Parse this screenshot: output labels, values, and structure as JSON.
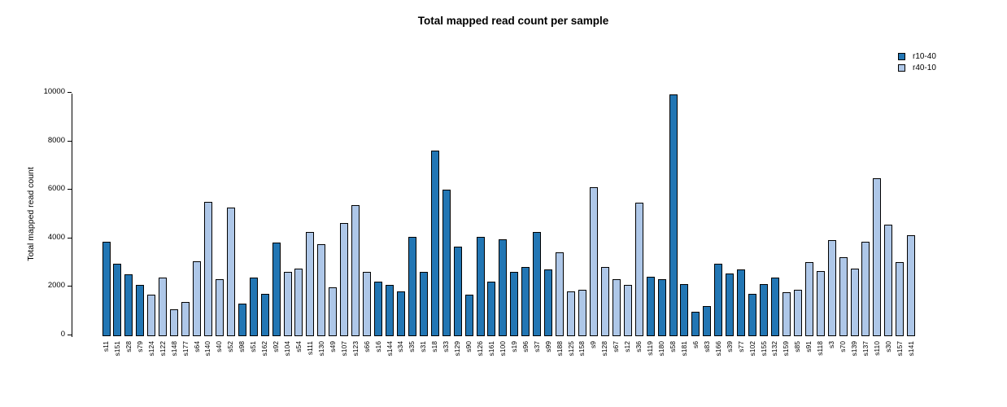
{
  "chart_data": {
    "type": "bar",
    "title": "Total mapped read count per sample",
    "ylabel": "Total mapped read count",
    "xlabel": "",
    "ylim": [
      0,
      10000
    ],
    "yticks": [
      0,
      2000,
      4000,
      6000,
      8000,
      10000
    ],
    "grid": false,
    "legend_position": "top-right",
    "legend": [
      {
        "name": "r10-40",
        "color": "#2276b4"
      },
      {
        "name": "r40-10",
        "color": "#aec7e8"
      }
    ],
    "samples": [
      {
        "label": "s11",
        "group": "r10-40",
        "value": 3900
      },
      {
        "label": "s151",
        "group": "r10-40",
        "value": 3000
      },
      {
        "label": "s28",
        "group": "r10-40",
        "value": 2550
      },
      {
        "label": "s79",
        "group": "r10-40",
        "value": 2100
      },
      {
        "label": "s124",
        "group": "r40-10",
        "value": 1700
      },
      {
        "label": "s122",
        "group": "r40-10",
        "value": 2400
      },
      {
        "label": "s148",
        "group": "r40-10",
        "value": 1100
      },
      {
        "label": "s177",
        "group": "r40-10",
        "value": 1400
      },
      {
        "label": "s64",
        "group": "r40-10",
        "value": 3100
      },
      {
        "label": "s140",
        "group": "r40-10",
        "value": 5550
      },
      {
        "label": "s40",
        "group": "r40-10",
        "value": 2350
      },
      {
        "label": "s52",
        "group": "r40-10",
        "value": 5300
      },
      {
        "label": "s98",
        "group": "r10-40",
        "value": 1350
      },
      {
        "label": "s51",
        "group": "r10-40",
        "value": 2400
      },
      {
        "label": "s162",
        "group": "r10-40",
        "value": 1750
      },
      {
        "label": "s92",
        "group": "r10-40",
        "value": 3850
      },
      {
        "label": "s104",
        "group": "r40-10",
        "value": 2650
      },
      {
        "label": "s54",
        "group": "r40-10",
        "value": 2800
      },
      {
        "label": "s111",
        "group": "r40-10",
        "value": 4300
      },
      {
        "label": "s130",
        "group": "r40-10",
        "value": 3800
      },
      {
        "label": "s49",
        "group": "r40-10",
        "value": 2000
      },
      {
        "label": "s107",
        "group": "r40-10",
        "value": 4650
      },
      {
        "label": "s123",
        "group": "r40-10",
        "value": 5400
      },
      {
        "label": "s66",
        "group": "r40-10",
        "value": 2650
      },
      {
        "label": "s16",
        "group": "r10-40",
        "value": 2250
      },
      {
        "label": "s144",
        "group": "r10-40",
        "value": 2100
      },
      {
        "label": "s34",
        "group": "r10-40",
        "value": 1850
      },
      {
        "label": "s35",
        "group": "r10-40",
        "value": 4100
      },
      {
        "label": "s31",
        "group": "r10-40",
        "value": 2650
      },
      {
        "label": "s18",
        "group": "r10-40",
        "value": 7650
      },
      {
        "label": "s33",
        "group": "r10-40",
        "value": 6050
      },
      {
        "label": "s129",
        "group": "r10-40",
        "value": 3700
      },
      {
        "label": "s90",
        "group": "r10-40",
        "value": 1700
      },
      {
        "label": "s126",
        "group": "r10-40",
        "value": 4100
      },
      {
        "label": "s161",
        "group": "r10-40",
        "value": 2250
      },
      {
        "label": "s100",
        "group": "r10-40",
        "value": 4000
      },
      {
        "label": "s19",
        "group": "r10-40",
        "value": 2650
      },
      {
        "label": "s96",
        "group": "r10-40",
        "value": 2850
      },
      {
        "label": "s37",
        "group": "r10-40",
        "value": 4300
      },
      {
        "label": "s99",
        "group": "r10-40",
        "value": 2750
      },
      {
        "label": "s188",
        "group": "r40-10",
        "value": 3450
      },
      {
        "label": "s125",
        "group": "r40-10",
        "value": 1850
      },
      {
        "label": "s158",
        "group": "r40-10",
        "value": 1900
      },
      {
        "label": "s9",
        "group": "r40-10",
        "value": 6150
      },
      {
        "label": "s128",
        "group": "r40-10",
        "value": 2850
      },
      {
        "label": "s67",
        "group": "r40-10",
        "value": 2350
      },
      {
        "label": "s12",
        "group": "r40-10",
        "value": 2100
      },
      {
        "label": "s36",
        "group": "r40-10",
        "value": 5500
      },
      {
        "label": "s119",
        "group": "r10-40",
        "value": 2450
      },
      {
        "label": "s180",
        "group": "r10-40",
        "value": 2350
      },
      {
        "label": "s58",
        "group": "r10-40",
        "value": 9950
      },
      {
        "label": "s181",
        "group": "r10-40",
        "value": 2150
      },
      {
        "label": "s6",
        "group": "r10-40",
        "value": 1000
      },
      {
        "label": "s83",
        "group": "r10-40",
        "value": 1250
      },
      {
        "label": "s166",
        "group": "r10-40",
        "value": 3000
      },
      {
        "label": "s39",
        "group": "r10-40",
        "value": 2600
      },
      {
        "label": "s77",
        "group": "r10-40",
        "value": 2750
      },
      {
        "label": "s102",
        "group": "r10-40",
        "value": 1750
      },
      {
        "label": "s155",
        "group": "r10-40",
        "value": 2150
      },
      {
        "label": "s132",
        "group": "r10-40",
        "value": 2400
      },
      {
        "label": "s159",
        "group": "r40-10",
        "value": 1800
      },
      {
        "label": "s85",
        "group": "r40-10",
        "value": 1900
      },
      {
        "label": "s91",
        "group": "r40-10",
        "value": 3050
      },
      {
        "label": "s118",
        "group": "r40-10",
        "value": 2700
      },
      {
        "label": "s3",
        "group": "r40-10",
        "value": 3950
      },
      {
        "label": "s70",
        "group": "r40-10",
        "value": 3250
      },
      {
        "label": "s139",
        "group": "r40-10",
        "value": 2800
      },
      {
        "label": "s137",
        "group": "r40-10",
        "value": 3900
      },
      {
        "label": "s110",
        "group": "r40-10",
        "value": 6500
      },
      {
        "label": "s30",
        "group": "r40-10",
        "value": 4600
      },
      {
        "label": "s157",
        "group": "r40-10",
        "value": 3050
      },
      {
        "label": "s141",
        "group": "r40-10",
        "value": 4150
      }
    ]
  }
}
